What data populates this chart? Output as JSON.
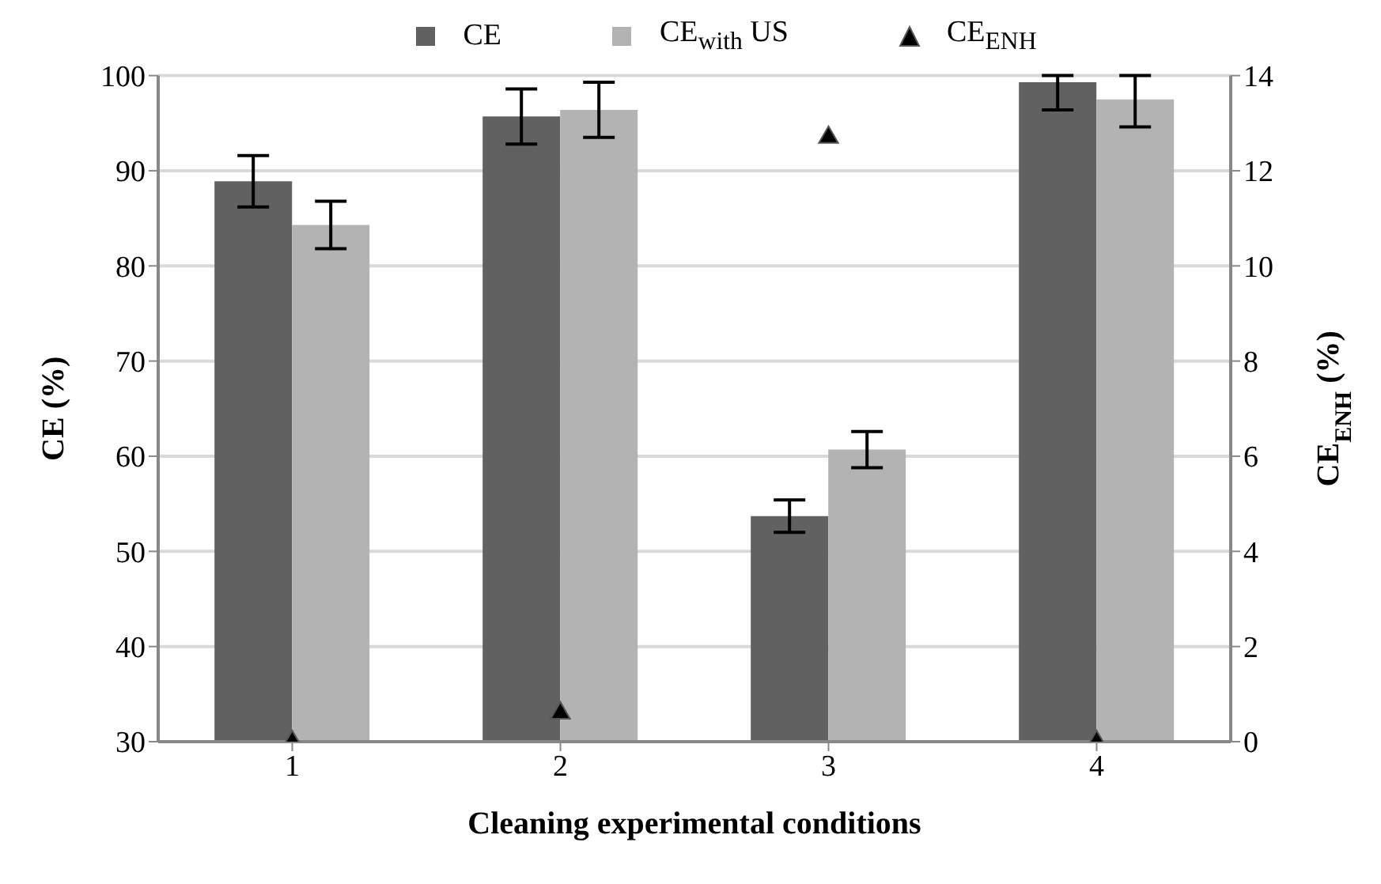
{
  "chart_data": {
    "type": "bar",
    "xlabel": "Cleaning experimental conditions",
    "ylabel": "CE (%)",
    "y2label": "CE$_{ENH}$ (%)",
    "categories": [
      "1",
      "2",
      "3",
      "4"
    ],
    "series": [
      {
        "name": "CE",
        "color": "#616161",
        "values": [
          88.9,
          95.7,
          53.7,
          99.3
        ],
        "errors": [
          2.7,
          2.9,
          1.7,
          [
            96.4,
            100
          ]
        ]
      },
      {
        "name": "CE$_{with}$ US",
        "color": "#b3b3b3",
        "values": [
          84.3,
          96.4,
          60.7,
          97.5
        ],
        "errors": [
          2.5,
          2.9,
          1.9,
          [
            94.6,
            100
          ]
        ]
      },
      {
        "name": "CE$_{ENH}$",
        "color": "#000000",
        "type": "scatter",
        "axis": "y2",
        "marker": "triangle",
        "values": [
          0,
          0.6,
          12.7,
          0
        ]
      }
    ],
    "ylim": [
      30,
      100
    ],
    "yticks": [
      30,
      40,
      50,
      60,
      70,
      80,
      90,
      100
    ],
    "y2lim": [
      0,
      14
    ],
    "y2ticks": [
      0,
      2,
      4,
      6,
      8,
      10,
      12,
      14
    ],
    "grid": "y",
    "legend": "top"
  }
}
